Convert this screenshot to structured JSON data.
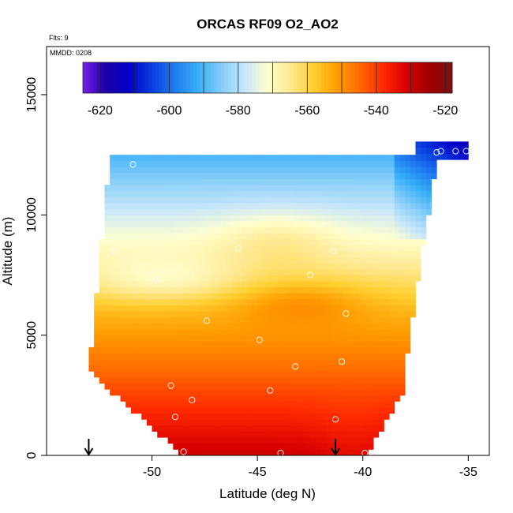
{
  "chart_data": {
    "type": "heatmap",
    "title": "ORCAS RF09 O2_AO2",
    "xlabel": "Latitude (deg N)",
    "ylabel": "Altitude (m)",
    "flights_label": "Flts: 9",
    "date_label": "MMDD: 0208",
    "xlim": [
      -55,
      -34
    ],
    "ylim": [
      0,
      17000
    ],
    "x_ticks": [
      -50,
      -45,
      -40,
      -35
    ],
    "y_ticks": [
      0,
      5000,
      10000,
      15000
    ],
    "x_tick_labels": [
      "-50",
      "-45",
      "-40",
      "-35"
    ],
    "y_tick_labels": [
      "0",
      "5000",
      "10000",
      "15000"
    ],
    "colorbar": {
      "range": [
        -625,
        -518
      ],
      "ticks": [
        -620,
        -600,
        -580,
        -560,
        -540,
        -520
      ],
      "tick_labels": [
        "-620",
        "-600",
        "-580",
        "-560",
        "-540",
        "-520"
      ],
      "colors": [
        "#7a1ee8",
        "#1a00a8",
        "#0000c8",
        "#0a3ee0",
        "#1f7cf0",
        "#38b0f8",
        "#86cdf8",
        "#c6e6fa",
        "#ffffd0",
        "#ffe890",
        "#ffcf30",
        "#ff9d00",
        "#ff6a00",
        "#ff2a00",
        "#d80000",
        "#a00000",
        "#7a1010"
      ]
    },
    "region": {
      "bottom_lat": [
        -48.5,
        -39.8
      ],
      "mid_lat": [
        -53.0,
        -38.0
      ],
      "top_lat": [
        -52.0,
        -36.5
      ],
      "corner_lat": [
        -35.0,
        -36.5
      ],
      "top_alt": 12300,
      "corner_alt": 12700
    },
    "profile_markers_lat": [
      -53.0,
      -41.3
    ],
    "samples": [
      {
        "lat": -50.9,
        "alt": 12100
      },
      {
        "lat": -36.5,
        "alt": 12600
      },
      {
        "lat": -36.3,
        "alt": 12650
      },
      {
        "lat": -35.6,
        "alt": 12650
      },
      {
        "lat": -35.1,
        "alt": 12650
      },
      {
        "lat": -51.8,
        "alt": 8500
      },
      {
        "lat": -45.9,
        "alt": 8600
      },
      {
        "lat": -41.4,
        "alt": 8500
      },
      {
        "lat": -49.8,
        "alt": 7300
      },
      {
        "lat": -42.5,
        "alt": 7500
      },
      {
        "lat": -40.8,
        "alt": 5900
      },
      {
        "lat": -47.4,
        "alt": 5600
      },
      {
        "lat": -44.9,
        "alt": 4800
      },
      {
        "lat": -43.2,
        "alt": 3700
      },
      {
        "lat": -41.0,
        "alt": 3900
      },
      {
        "lat": -49.1,
        "alt": 2900
      },
      {
        "lat": -44.4,
        "alt": 2700
      },
      {
        "lat": -48.1,
        "alt": 2300
      },
      {
        "lat": -48.9,
        "alt": 1600
      },
      {
        "lat": -41.3,
        "alt": 1500
      },
      {
        "lat": -48.5,
        "alt": 150
      },
      {
        "lat": -43.9,
        "alt": 100
      },
      {
        "lat": -39.9,
        "alt": 100
      }
    ]
  }
}
